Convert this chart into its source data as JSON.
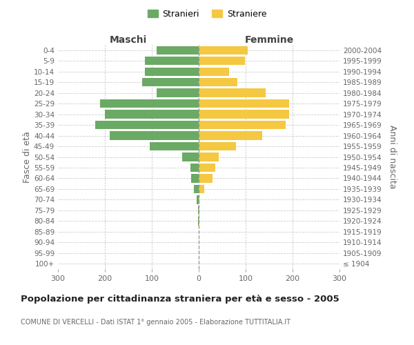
{
  "age_groups": [
    "100+",
    "95-99",
    "90-94",
    "85-89",
    "80-84",
    "75-79",
    "70-74",
    "65-69",
    "60-64",
    "55-59",
    "50-54",
    "45-49",
    "40-44",
    "35-39",
    "30-34",
    "25-29",
    "20-24",
    "15-19",
    "10-14",
    "5-9",
    "0-4"
  ],
  "birth_years": [
    "≤ 1904",
    "1905-1909",
    "1910-1914",
    "1915-1919",
    "1920-1924",
    "1925-1929",
    "1930-1934",
    "1935-1939",
    "1940-1944",
    "1945-1949",
    "1950-1954",
    "1955-1959",
    "1960-1964",
    "1965-1969",
    "1970-1974",
    "1975-1979",
    "1980-1984",
    "1985-1989",
    "1990-1994",
    "1995-1999",
    "2000-2004"
  ],
  "maschi": [
    0,
    0,
    0,
    0,
    2,
    2,
    5,
    10,
    16,
    18,
    35,
    105,
    190,
    220,
    200,
    210,
    90,
    120,
    115,
    115,
    90
  ],
  "femmine": [
    0,
    0,
    0,
    0,
    2,
    2,
    1,
    12,
    30,
    35,
    42,
    80,
    135,
    185,
    192,
    192,
    142,
    82,
    65,
    98,
    105
  ],
  "male_color": "#6aaa64",
  "female_color": "#f5c842",
  "background_color": "#ffffff",
  "grid_color": "#cccccc",
  "title": "Popolazione per cittadinanza straniera per età e sesso - 2005",
  "subtitle": "COMUNE DI VERCELLI - Dati ISTAT 1° gennaio 2005 - Elaborazione TUTTITALIA.IT",
  "label_maschi": "Maschi",
  "label_femmine": "Femmine",
  "label_fascia": "Fasce di età",
  "label_anni": "Anni di nascita",
  "legend_m": "Stranieri",
  "legend_f": "Straniere",
  "xlim": 300
}
